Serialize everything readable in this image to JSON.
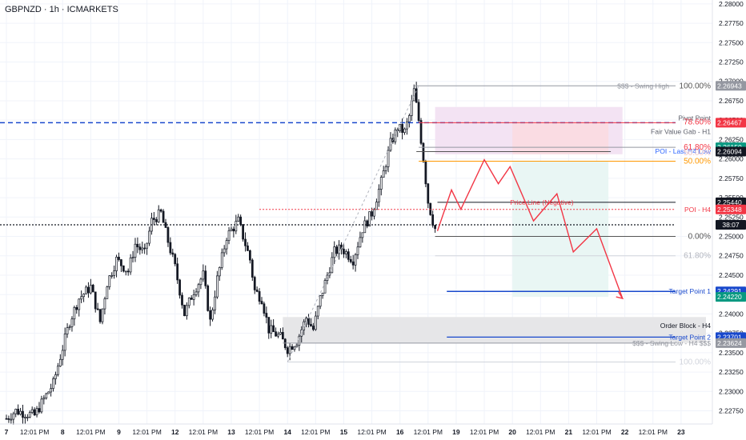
{
  "header": {
    "symbol": "GBPNZD · 1h · ICMARKETS"
  },
  "colors": {
    "bull": "#131722",
    "bear": "#131722",
    "grid": "#f0f3fa",
    "blue": "#1848cc",
    "red": "#f23645",
    "orange": "#ff9800",
    "pink_zone": "#f3e3f3",
    "red_zone": "#fbd9de",
    "green_zone": "#e9f6f4",
    "grey_zone": "#e6e6e8",
    "fib_grey": "#9598a1",
    "dark_tag": "#131722"
  },
  "chart_data": {
    "type": "candlestick",
    "ylim": [
      2.2258,
      2.2805
    ],
    "y_ticks": [
      "2.28000",
      "2.27750",
      "2.27500",
      "2.27250",
      "2.27000",
      "2.26750",
      "2.26500",
      "2.26250",
      "2.26000",
      "2.25750",
      "2.25500",
      "2.25250",
      "2.25000",
      "2.24750",
      "2.24500",
      "2.24250",
      "2.24000",
      "2.23750",
      "2.23500",
      "2.23250",
      "2.23000",
      "2.22750"
    ],
    "x_ticks": [
      {
        "label": "7",
        "at": 0
      },
      {
        "label": "12:01 PM",
        "at": 12
      },
      {
        "label": "8",
        "at": 24
      },
      {
        "label": "12:01 PM",
        "at": 36
      },
      {
        "label": "9",
        "at": 48
      },
      {
        "label": "12:01 PM",
        "at": 60
      },
      {
        "label": "12",
        "at": 72
      },
      {
        "label": "12:01 PM",
        "at": 84
      },
      {
        "label": "13",
        "at": 96
      },
      {
        "label": "12:01 PM",
        "at": 108
      },
      {
        "label": "14",
        "at": 120
      },
      {
        "label": "12:01 PM",
        "at": 132
      },
      {
        "label": "15",
        "at": 144
      },
      {
        "label": "12:01 PM",
        "at": 156
      },
      {
        "label": "16",
        "at": 168
      },
      {
        "label": "12:01 PM",
        "at": 180
      },
      {
        "label": "19",
        "at": 192
      },
      {
        "label": "12:01 PM",
        "at": 204
      },
      {
        "label": "20",
        "at": 216
      },
      {
        "label": "12:01 PM",
        "at": 228
      },
      {
        "label": "21",
        "at": 240
      },
      {
        "label": "12:01 PM",
        "at": 252
      },
      {
        "label": "22",
        "at": 264
      },
      {
        "label": "12:01 PM",
        "at": 276
      },
      {
        "label": "23",
        "at": 288
      }
    ],
    "close_path": [
      [
        0,
        2.2265
      ],
      [
        4,
        2.2275
      ],
      [
        8,
        2.2272
      ],
      [
        12,
        2.2269
      ],
      [
        16,
        2.229
      ],
      [
        20,
        2.231
      ],
      [
        23,
        2.2345
      ],
      [
        27,
        2.239
      ],
      [
        31,
        2.242
      ],
      [
        36,
        2.2435
      ],
      [
        40,
        2.239
      ],
      [
        43,
        2.244
      ],
      [
        47,
        2.247
      ],
      [
        52,
        2.2455
      ],
      [
        55,
        2.249
      ],
      [
        59,
        2.2478
      ],
      [
        62,
        2.252
      ],
      [
        66,
        2.253
      ],
      [
        68,
        2.2505
      ],
      [
        72,
        2.246
      ],
      [
        76,
        2.24
      ],
      [
        80,
        2.243
      ],
      [
        84,
        2.245
      ],
      [
        87,
        2.239
      ],
      [
        90,
        2.2445
      ],
      [
        94,
        2.25
      ],
      [
        99,
        2.252
      ],
      [
        104,
        2.247
      ],
      [
        106,
        2.243
      ],
      [
        109,
        2.242
      ],
      [
        112,
        2.238
      ],
      [
        117,
        2.237
      ],
      [
        120,
        2.2355
      ],
      [
        124,
        2.2365
      ],
      [
        128,
        2.2395
      ],
      [
        131,
        2.238
      ],
      [
        134,
        2.242
      ],
      [
        140,
        2.248
      ],
      [
        143,
        2.2485
      ],
      [
        148,
        2.247
      ],
      [
        152,
        2.251
      ],
      [
        156,
        2.253
      ],
      [
        160,
        2.257
      ],
      [
        164,
        2.262
      ],
      [
        167,
        2.264
      ],
      [
        170,
        2.2635
      ],
      [
        172,
        2.2655
      ],
      [
        174,
        2.2688
      ],
      [
        176,
        2.265
      ],
      [
        178,
        2.26
      ],
      [
        180,
        2.2545
      ],
      [
        182,
        2.252
      ],
      [
        183,
        2.251
      ]
    ],
    "last_price": 2.2515,
    "last_price_tag": "38:07",
    "scale_labels": [
      {
        "text": "2.26943",
        "y": 2.26943,
        "bg": "#9598a1"
      },
      {
        "text": "2.26467",
        "y": 2.26467,
        "bg": "#f23645"
      },
      {
        "text": "2.26150",
        "y": 2.2615,
        "bg": "#089981"
      },
      {
        "text": "2.26094",
        "y": 2.26094,
        "bg": "#131722"
      },
      {
        "text": "2.25440",
        "y": 2.2544,
        "bg": "#131722"
      },
      {
        "text": "2.25348",
        "y": 2.25348,
        "bg": "#f23645"
      },
      {
        "text": "2.24291",
        "y": 2.24291,
        "bg": "#1848cc"
      },
      {
        "text": "2.24220",
        "y": 2.2422,
        "bg": "#089981"
      },
      {
        "text": "2.23701",
        "y": 2.23701,
        "bg": "#1848cc"
      },
      {
        "text": "2.23624",
        "y": 2.23624,
        "bg": "#9598a1"
      }
    ],
    "annotations": {
      "swing_high": "$$$ - Swing High",
      "fib_100": "100.00%",
      "pivot_point": "Pivot Point",
      "fib_78": "78.60%",
      "fvg_h1": "Fair Value Gab - H1",
      "fib_618": "61.80%",
      "poi_h4_low": "POI - Last H4 Low",
      "fib_50_faint": "50.00%",
      "fib_50": "50.00%",
      "price_line_neg": "Price Line (Negative)",
      "poi_h4": "POI - H4",
      "fib_0": "0.00%",
      "fib_618_neg": "61.80%",
      "target_1": "Target Point 1",
      "order_block": "Order Block - H4",
      "target_2": "Target Point 2",
      "swing_low": "$$$ - Swing Low - H4 $$$",
      "fib_100_neg": "100.00%"
    },
    "levels": {
      "swing_high": 2.26943,
      "pivot": 2.26467,
      "fib_786": 2.2655,
      "fib_618": 2.2615,
      "poi_h4_low": 2.26094,
      "fib_50": 2.2597,
      "price_line": 2.2544,
      "poi_h4": 2.25348,
      "fib_0": 2.25,
      "fib_618_neg": 2.2475,
      "target_1": 2.24291,
      "target_1b": 2.2422,
      "order_block_top": 2.2396,
      "order_block_bot": 2.23624,
      "target_2": 2.23701,
      "swing_low": 2.23624,
      "fib_100_neg": 2.2338,
      "dashed_blue": 2.26467
    },
    "projection_path": [
      [
        184,
        2.2507
      ],
      [
        190,
        2.256
      ],
      [
        194,
        2.2535
      ],
      [
        204,
        2.2599
      ],
      [
        210,
        2.2568
      ],
      [
        215,
        2.259
      ],
      [
        225,
        2.252
      ],
      [
        235,
        2.2555
      ],
      [
        242,
        2.248
      ],
      [
        252,
        2.251
      ],
      [
        263,
        2.242
      ]
    ]
  }
}
